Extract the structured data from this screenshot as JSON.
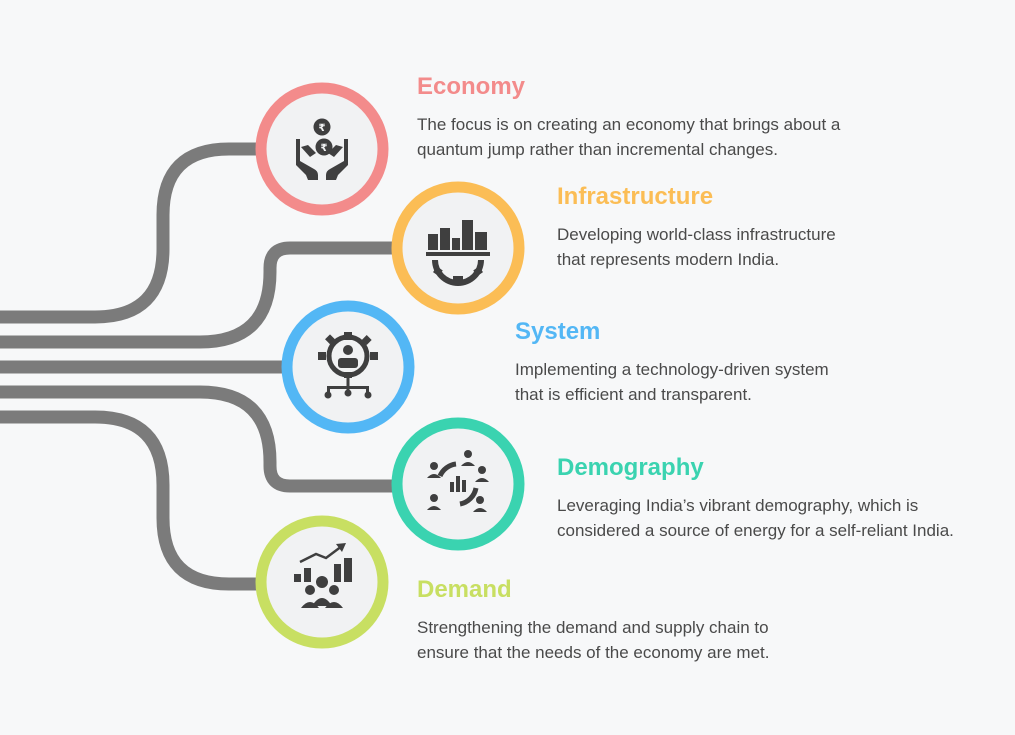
{
  "pillars": [
    {
      "title": "Economy",
      "description": "The focus is on creating an economy that brings about a\nquantum jump rather than incremental changes.",
      "color": "#f38b8b",
      "icon": "hands-holding-coins-icon"
    },
    {
      "title": "Infrastructure",
      "description": " Developing world-class infrastructure\nthat represents modern India.",
      "color": "#fbbd55",
      "icon": "city-on-gear-icon"
    },
    {
      "title": "System",
      "description": "Implementing a technology-driven system\nthat is efficient and transparent.",
      "color": "#53b7f5",
      "icon": "gear-user-network-icon"
    },
    {
      "title": "Demography",
      "description": " Leveraging India’s vibrant demography, which is\nconsidered a source of energy for a self-reliant India.",
      "color": "#3ad3b0",
      "icon": "people-circle-chart-icon"
    },
    {
      "title": "Demand",
      "description": "Strengthening the demand and supply chain to\nensure that the needs of the economy are met.",
      "color": "#c8df62",
      "icon": "growth-chart-crowd-icon"
    }
  ],
  "connector_color": "#7b7b7b",
  "icon_color": "#3f3f3f"
}
